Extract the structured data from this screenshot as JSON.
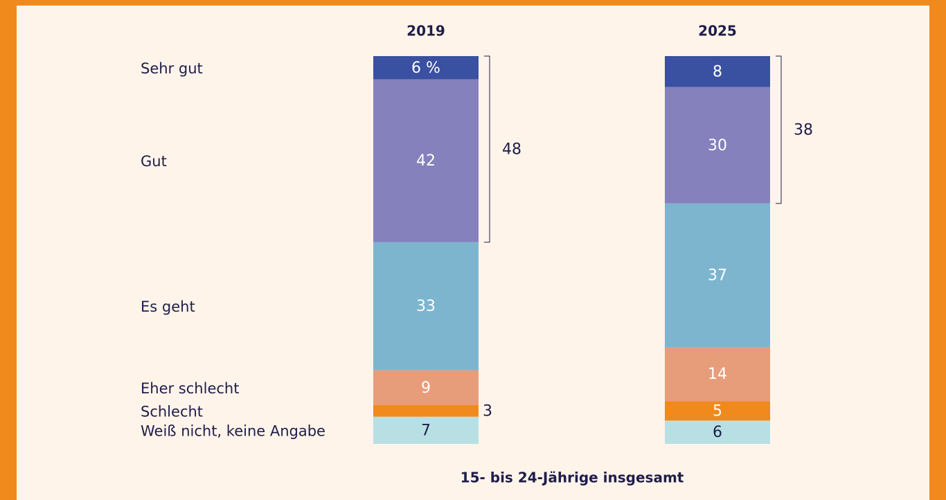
{
  "chart_data": {
    "type": "stacked_bar",
    "footer": "15- bis 24-Jährige insgesamt",
    "categories": [
      "2019",
      "2025"
    ],
    "ylim": [
      0,
      100
    ],
    "series": [
      {
        "name": "Sehr gut",
        "color": "#3a50a0",
        "values": [
          6,
          8
        ],
        "value_labels": [
          "6 %",
          "8"
        ]
      },
      {
        "name": "Gut",
        "color": "#8481bd",
        "values": [
          42,
          30
        ]
      },
      {
        "name": "Es geht",
        "color": "#7db5cf",
        "values": [
          33,
          37
        ]
      },
      {
        "name": "Eher schlecht",
        "color": "#e89d7a",
        "values": [
          9,
          14
        ]
      },
      {
        "name": "Schlecht",
        "color": "#f08a1c",
        "values": [
          3,
          5
        ]
      },
      {
        "name": "Weiß nicht, keine Angabe",
        "color": "#b8e0e4",
        "values": [
          7,
          6
        ]
      }
    ],
    "bracket_totals": [
      48,
      38
    ]
  }
}
